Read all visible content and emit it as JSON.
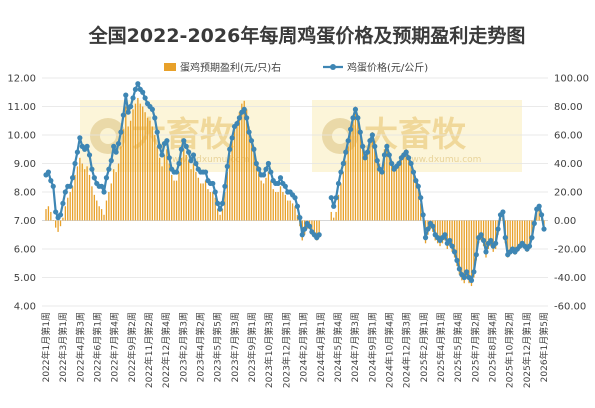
{
  "chart_data": {
    "type": "bar+line",
    "title": "全国2022-2026年每周鸡蛋价格及预期盈利走势图",
    "legend": {
      "position": "top",
      "items": [
        "蛋鸡预期盈利(元/只)右",
        "鸡蛋价格(元/公斤)"
      ]
    },
    "left_axis": {
      "min": 4,
      "max": 12,
      "step": 1,
      "decimals": 2,
      "series": "鸡蛋价格(元/公斤)"
    },
    "right_axis": {
      "min": -60,
      "max": 100,
      "step": 20,
      "decimals": 2,
      "series": "蛋鸡预期盈利(元/只)右"
    },
    "x_labels": [
      "2022年1月第1周",
      "2022年3月第1周",
      "2022年4月第3周",
      "2022年6月第1周",
      "2022年7月第4周",
      "2022年9月第2周",
      "2022年11月第2周",
      "2022年12月第4周",
      "2023年2月第3周",
      "2023年4月第2周",
      "2023年5月第5周",
      "2023年7月第3周",
      "2023年9月第1周",
      "2023年10月第3周",
      "2023年12月第1周",
      "2024年2月第1周",
      "2024年4月第1周",
      "2024年5月第4周",
      "2024年7月第3周",
      "2024年9月第1周",
      "2024年10月第4周",
      "2024年12月第3周",
      "2025年2月第1周",
      "2025年4月第1周",
      "2025年5月第4周",
      "2025年7月第2周",
      "2025年8月第4周",
      "2025年10月第2周",
      "2025年12月第1周",
      "2026年1月第5周"
    ],
    "series": [
      {
        "name": "鸡蛋价格(元/公斤)",
        "type": "line",
        "axis": "left",
        "color": "#3e86b4",
        "values": [
          8.6,
          8.7,
          8.4,
          8.2,
          7.3,
          7.1,
          7.2,
          7.6,
          8.0,
          8.2,
          8.2,
          8.5,
          9.0,
          9.4,
          9.9,
          9.6,
          9.5,
          9.6,
          9.3,
          8.8,
          8.5,
          8.3,
          8.2,
          8.2,
          8.0,
          8.5,
          8.8,
          9.1,
          9.6,
          9.4,
          9.7,
          10.1,
          10.7,
          11.4,
          10.8,
          11.0,
          11.3,
          11.6,
          11.8,
          11.6,
          11.5,
          11.3,
          11.1,
          11.0,
          10.9,
          10.6,
          10.1,
          9.6,
          9.3,
          9.7,
          9.8,
          9.2,
          8.8,
          8.7,
          8.7,
          9.0,
          9.5,
          9.8,
          9.6,
          9.4,
          9.1,
          9.3,
          9.0,
          8.8,
          8.7,
          8.7,
          8.7,
          8.4,
          8.3,
          8.3,
          8.0,
          7.6,
          7.4,
          7.6,
          8.2,
          8.9,
          9.5,
          9.9,
          10.3,
          10.4,
          10.6,
          10.8,
          10.9,
          10.6,
          10.1,
          9.8,
          9.5,
          9.0,
          8.8,
          8.6,
          8.6,
          8.8,
          9.0,
          8.7,
          8.4,
          8.3,
          8.3,
          8.5,
          8.3,
          8.2,
          8.0,
          8.0,
          7.9,
          7.8,
          7.5,
          7.1,
          6.5,
          6.7,
          6.9,
          6.8,
          6.6,
          6.5,
          6.4,
          6.5,
          null,
          null,
          null,
          null,
          7.8,
          7.5,
          7.8,
          8.3,
          8.7,
          9.0,
          9.4,
          9.8,
          10.2,
          10.6,
          10.9,
          10.6,
          10.1,
          9.6,
          9.2,
          9.4,
          9.8,
          10.0,
          9.6,
          9.1,
          8.8,
          8.7,
          9.3,
          9.6,
          9.3,
          9.0,
          8.8,
          8.9,
          9.0,
          9.2,
          9.3,
          9.4,
          9.2,
          9.0,
          8.7,
          8.4,
          8.2,
          7.8,
          7.2,
          6.4,
          6.7,
          6.9,
          6.8,
          6.5,
          6.4,
          6.3,
          6.4,
          6.5,
          6.2,
          6.3,
          6.1,
          5.9,
          5.6,
          5.3,
          5.1,
          5.0,
          5.2,
          5.0,
          4.9,
          5.2,
          5.8,
          6.4,
          6.5,
          6.3,
          5.9,
          6.2,
          6.3,
          6.1,
          6.2,
          6.7,
          7.2,
          7.3,
          6.4,
          5.8,
          5.9,
          6.0,
          5.9,
          6.0,
          6.1,
          6.2,
          6.1,
          6.0,
          6.1,
          6.4,
          6.9,
          7.4,
          7.5,
          7.2,
          6.7
        ]
      },
      {
        "name": "蛋鸡预期盈利(元/只)右",
        "type": "bar",
        "axis": "right",
        "color": "#e8a12a",
        "values": [
          8,
          10,
          6,
          0,
          -5,
          -8,
          -4,
          2,
          10,
          16,
          20,
          24,
          32,
          38,
          44,
          40,
          36,
          38,
          32,
          24,
          18,
          14,
          10,
          8,
          4,
          14,
          20,
          26,
          36,
          34,
          40,
          52,
          64,
          80,
          66,
          70,
          78,
          82,
          86,
          82,
          80,
          76,
          72,
          70,
          66,
          60,
          52,
          44,
          38,
          46,
          50,
          40,
          32,
          28,
          28,
          34,
          44,
          50,
          46,
          42,
          36,
          40,
          34,
          30,
          26,
          26,
          28,
          22,
          20,
          20,
          16,
          8,
          4,
          8,
          20,
          34,
          46,
          56,
          66,
          70,
          76,
          82,
          84,
          78,
          66,
          58,
          50,
          40,
          34,
          28,
          26,
          30,
          34,
          28,
          22,
          20,
          20,
          24,
          20,
          18,
          14,
          14,
          12,
          10,
          4,
          -4,
          -14,
          -10,
          -6,
          -6,
          -10,
          -12,
          -14,
          -12,
          null,
          null,
          null,
          null,
          6,
          2,
          6,
          18,
          26,
          34,
          42,
          52,
          62,
          72,
          80,
          74,
          62,
          54,
          46,
          50,
          58,
          62,
          56,
          44,
          40,
          36,
          50,
          54,
          48,
          42,
          38,
          40,
          42,
          46,
          48,
          50,
          46,
          42,
          34,
          28,
          22,
          12,
          0,
          -16,
          -10,
          -6,
          -8,
          -14,
          -16,
          -18,
          -16,
          -14,
          -20,
          -18,
          -22,
          -26,
          -32,
          -38,
          -42,
          -44,
          -40,
          -44,
          -46,
          -40,
          -28,
          -16,
          -14,
          -18,
          -26,
          -20,
          -18,
          -22,
          -20,
          -10,
          2,
          4,
          -16,
          -26,
          -24,
          -22,
          -24,
          -22,
          -20,
          -18,
          -20,
          -22,
          -20,
          -14,
          -4,
          8,
          10,
          4,
          -6
        ]
      }
    ],
    "watermark": {
      "text": "大畜牧",
      "url": "www.dxumu.com"
    }
  }
}
